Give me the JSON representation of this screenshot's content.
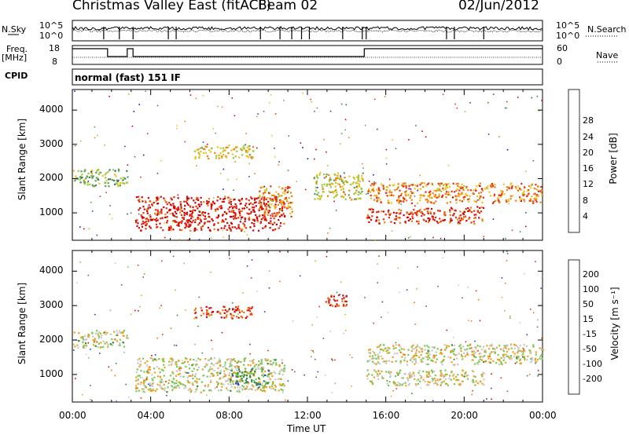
{
  "header": {
    "title": "Christmas Valley East (fitACF)",
    "beam": "Beam 02",
    "date": "02/Jun/2012"
  },
  "panels": {
    "nsky": {
      "label": "N.Sky",
      "ticks": [
        "10^5",
        "10^0"
      ],
      "right_label": "N.Search",
      "right_ticks": [
        "10^5",
        "10^0"
      ]
    },
    "freq": {
      "label_line1": "Freq.",
      "label_line2": "[MHz]",
      "ticks": [
        "18",
        "8"
      ],
      "right_label": "Nave",
      "right_ticks": [
        "60",
        "0"
      ]
    },
    "cpid": {
      "label": "CPID",
      "value": "normal (fast) 151 IF"
    },
    "power": {
      "ylabel": "Slant Range [km]",
      "cbar_label": "Power [dB]"
    },
    "velocity": {
      "ylabel": "Slant Range [km]",
      "cbar_label": "Velocity [m s⁻¹]"
    },
    "xlabel": "Time UT"
  },
  "chart_data": [
    {
      "type": "heatmap",
      "name": "power",
      "x_ticks": [
        "00:00",
        "04:00",
        "08:00",
        "12:00",
        "16:00",
        "20:00",
        "00:00"
      ],
      "x_range_hours": [
        0,
        24
      ],
      "y_ticks": [
        1000,
        2000,
        3000,
        4000
      ],
      "ylim": [
        200,
        4600
      ],
      "colorbar_ticks": [
        4,
        8,
        12,
        16,
        20,
        24,
        28
      ],
      "colorbar_colors": [
        "#1010e0",
        "#2a4aa0",
        "#3a7d5a",
        "#5aa05a",
        "#9ac83a",
        "#f0c020",
        "#f08010",
        "#e83010",
        "#d00000"
      ],
      "bands": [
        {
          "t0": 0.0,
          "t1": 2.8,
          "r0": 1800,
          "r1": 2300,
          "level": 0.45
        },
        {
          "t0": 3.2,
          "t1": 10.8,
          "r0": 500,
          "r1": 1500,
          "level": 0.92
        },
        {
          "t0": 6.2,
          "t1": 9.2,
          "r0": 2600,
          "r1": 3000,
          "level": 0.6
        },
        {
          "t0": 9.5,
          "t1": 11.2,
          "r0": 900,
          "r1": 1800,
          "level": 0.7
        },
        {
          "t0": 12.3,
          "t1": 14.8,
          "r0": 1400,
          "r1": 2200,
          "level": 0.55
        },
        {
          "t0": 15.0,
          "t1": 19.0,
          "r0": 700,
          "r1": 1150,
          "level": 0.85
        },
        {
          "t0": 15.0,
          "t1": 24.0,
          "r0": 1300,
          "r1": 1900,
          "level": 0.72
        },
        {
          "t0": 19.2,
          "t1": 21.0,
          "r0": 700,
          "r1": 1200,
          "level": 0.85
        }
      ]
    },
    {
      "type": "heatmap",
      "name": "velocity",
      "x_ticks": [
        "00:00",
        "04:00",
        "08:00",
        "12:00",
        "16:00",
        "20:00",
        "00:00"
      ],
      "x_range_hours": [
        0,
        24
      ],
      "y_ticks": [
        1000,
        2000,
        3000,
        4000
      ],
      "ylim": [
        200,
        4600
      ],
      "colorbar_ticks": [
        200,
        100,
        50,
        15,
        -15,
        -50,
        -100,
        -200
      ],
      "colorbar_colors": [
        "#2040c0",
        "#3a7d5a",
        "#2e8b2e",
        "#78c850",
        "#c8c8c8",
        "#f0a020",
        "#f07010",
        "#e03010",
        "#d00000"
      ],
      "bands": [
        {
          "t0": 0.0,
          "t1": 2.8,
          "r0": 1800,
          "r1": 2300,
          "level": 0.5
        },
        {
          "t0": 3.2,
          "t1": 10.8,
          "r0": 500,
          "r1": 1500,
          "level": 0.5
        },
        {
          "t0": 6.2,
          "t1": 9.2,
          "r0": 2650,
          "r1": 3000,
          "level": 0.85
        },
        {
          "t0": 8.0,
          "t1": 10.0,
          "r0": 700,
          "r1": 1200,
          "level": 0.25
        },
        {
          "t0": 12.8,
          "t1": 14.0,
          "r0": 3000,
          "r1": 3400,
          "level": 0.9
        },
        {
          "t0": 15.0,
          "t1": 24.0,
          "r0": 1300,
          "r1": 1900,
          "level": 0.5
        },
        {
          "t0": 15.0,
          "t1": 21.0,
          "r0": 700,
          "r1": 1150,
          "level": 0.5
        }
      ]
    }
  ]
}
